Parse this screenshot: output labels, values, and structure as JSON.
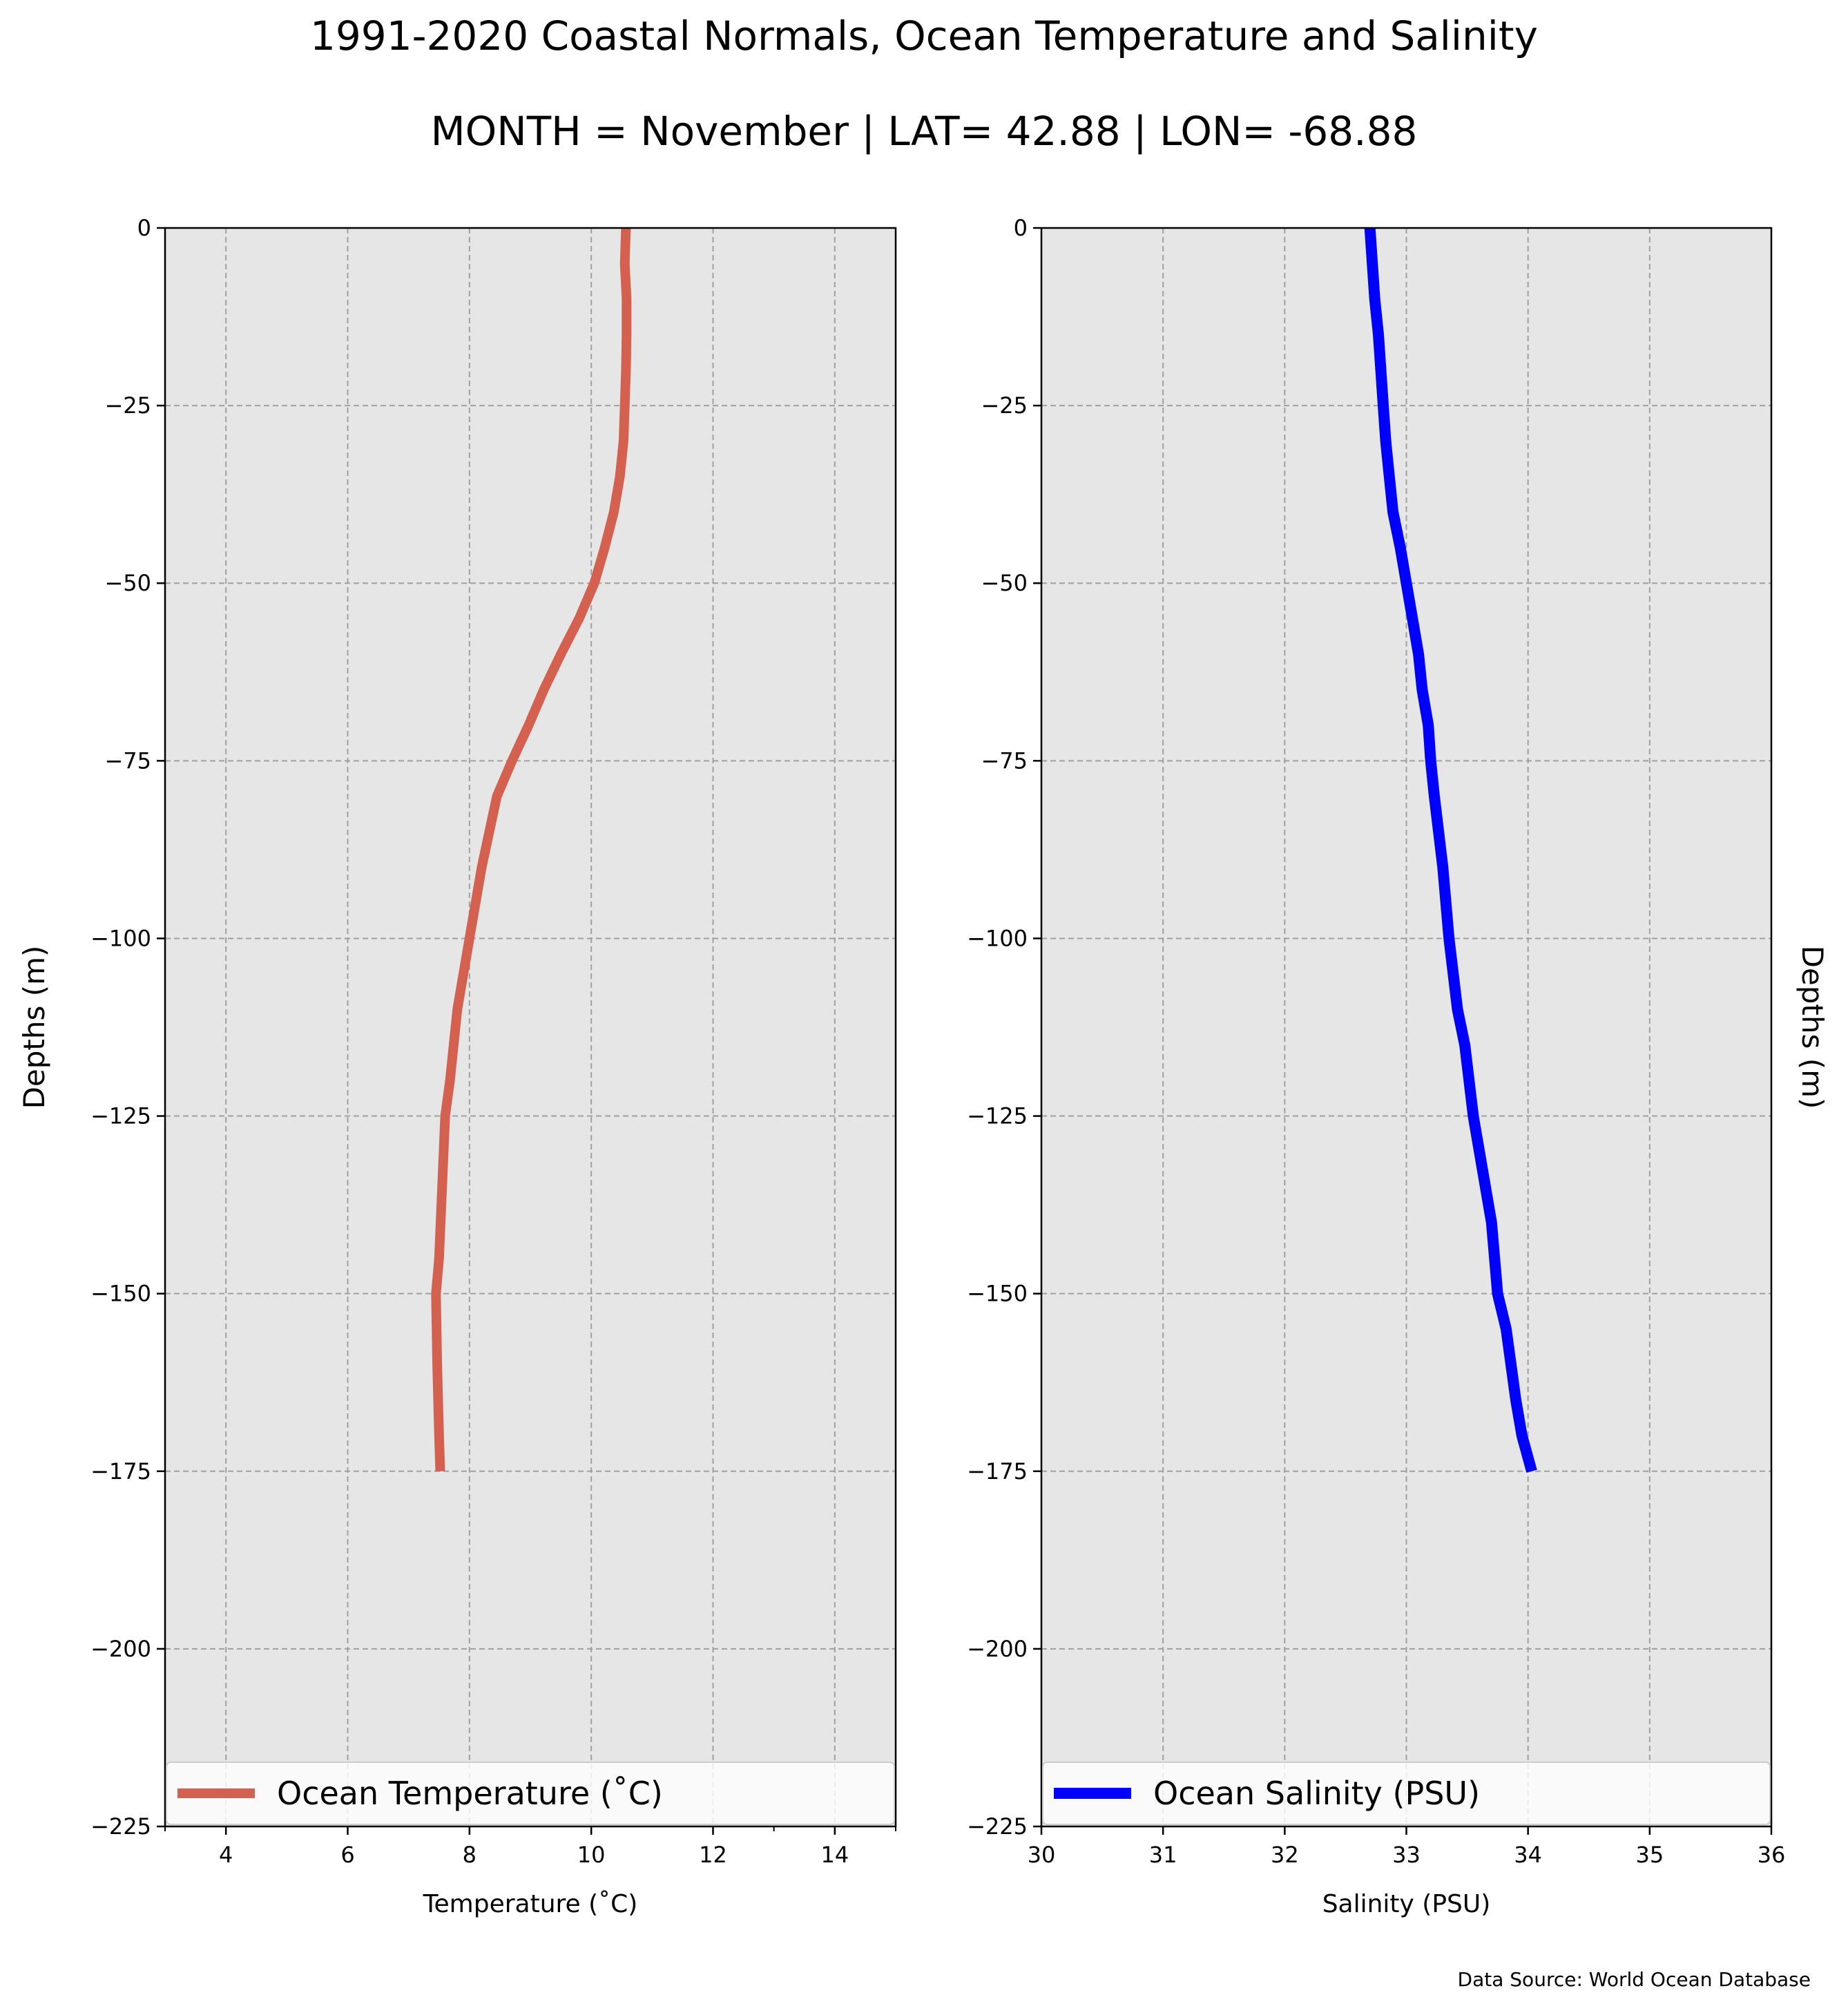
{
  "title": "1991-2020 Coastal Normals, Ocean Temperature and Salinity",
  "subtitle": "MONTH = November | LAT= 42.88 | LON= -68.88",
  "source": "Data Source: World Ocean Database",
  "colors": {
    "temperature": "#d46150",
    "salinity": "#0000ff",
    "plot_bg": "#e6e6e6"
  },
  "chart_data": [
    {
      "type": "line",
      "xlabel": "Temperature (˚C)",
      "ylabel": "Depths (m)",
      "xlim": [
        3,
        15
      ],
      "ylim": [
        -225,
        0
      ],
      "xticks": [
        4,
        6,
        8,
        10,
        12,
        14
      ],
      "yticks": [
        0,
        -25,
        -50,
        -75,
        -100,
        -125,
        -150,
        -175,
        -200,
        -225
      ],
      "grid": true,
      "legend_position": "lower center",
      "series": [
        {
          "name": "Ocean Temperature (˚C)",
          "x": [
            10.57,
            10.55,
            10.58,
            10.58,
            10.57,
            10.55,
            10.53,
            10.47,
            10.37,
            10.22,
            10.05,
            9.8,
            9.5,
            9.22,
            8.97,
            8.7,
            8.45,
            8.2,
            8.0,
            7.9,
            7.8,
            7.68,
            7.6,
            7.55,
            7.5,
            7.45,
            7.47,
            7.5,
            7.52
          ],
          "y": [
            0,
            -5,
            -10,
            -15,
            -20,
            -25,
            -30,
            -35,
            -40,
            -45,
            -50,
            -55,
            -60,
            -65,
            -70,
            -75,
            -80,
            -90,
            -100,
            -105,
            -110,
            -120,
            -125,
            -135,
            -145,
            -150,
            -160,
            -170,
            -175
          ]
        }
      ]
    },
    {
      "type": "line",
      "xlabel": "Salinity (PSU)",
      "ylabel": "Depths (m)",
      "xlim": [
        30,
        36
      ],
      "ylim": [
        -225,
        0
      ],
      "xticks": [
        30,
        31,
        32,
        33,
        34,
        35,
        36
      ],
      "yticks": [
        0,
        -25,
        -50,
        -75,
        -100,
        -125,
        -150,
        -175,
        -200,
        -225
      ],
      "grid": true,
      "legend_position": "lower center",
      "series": [
        {
          "name": "Ocean Salinity (PSU)",
          "x": [
            32.7,
            32.72,
            32.74,
            32.77,
            32.79,
            32.81,
            32.83,
            32.86,
            32.89,
            32.95,
            33.0,
            33.05,
            33.1,
            33.13,
            33.18,
            33.2,
            33.23,
            33.3,
            33.35,
            33.42,
            33.48,
            33.55,
            33.6,
            33.7,
            33.75,
            33.82,
            33.9,
            33.95,
            34.03
          ],
          "y": [
            0,
            -5,
            -10,
            -15,
            -20,
            -25,
            -30,
            -35,
            -40,
            -45,
            -50,
            -55,
            -60,
            -65,
            -70,
            -75,
            -80,
            -90,
            -100,
            -110,
            -115,
            -125,
            -130,
            -140,
            -150,
            -155,
            -165,
            -170,
            -175
          ]
        }
      ]
    }
  ]
}
